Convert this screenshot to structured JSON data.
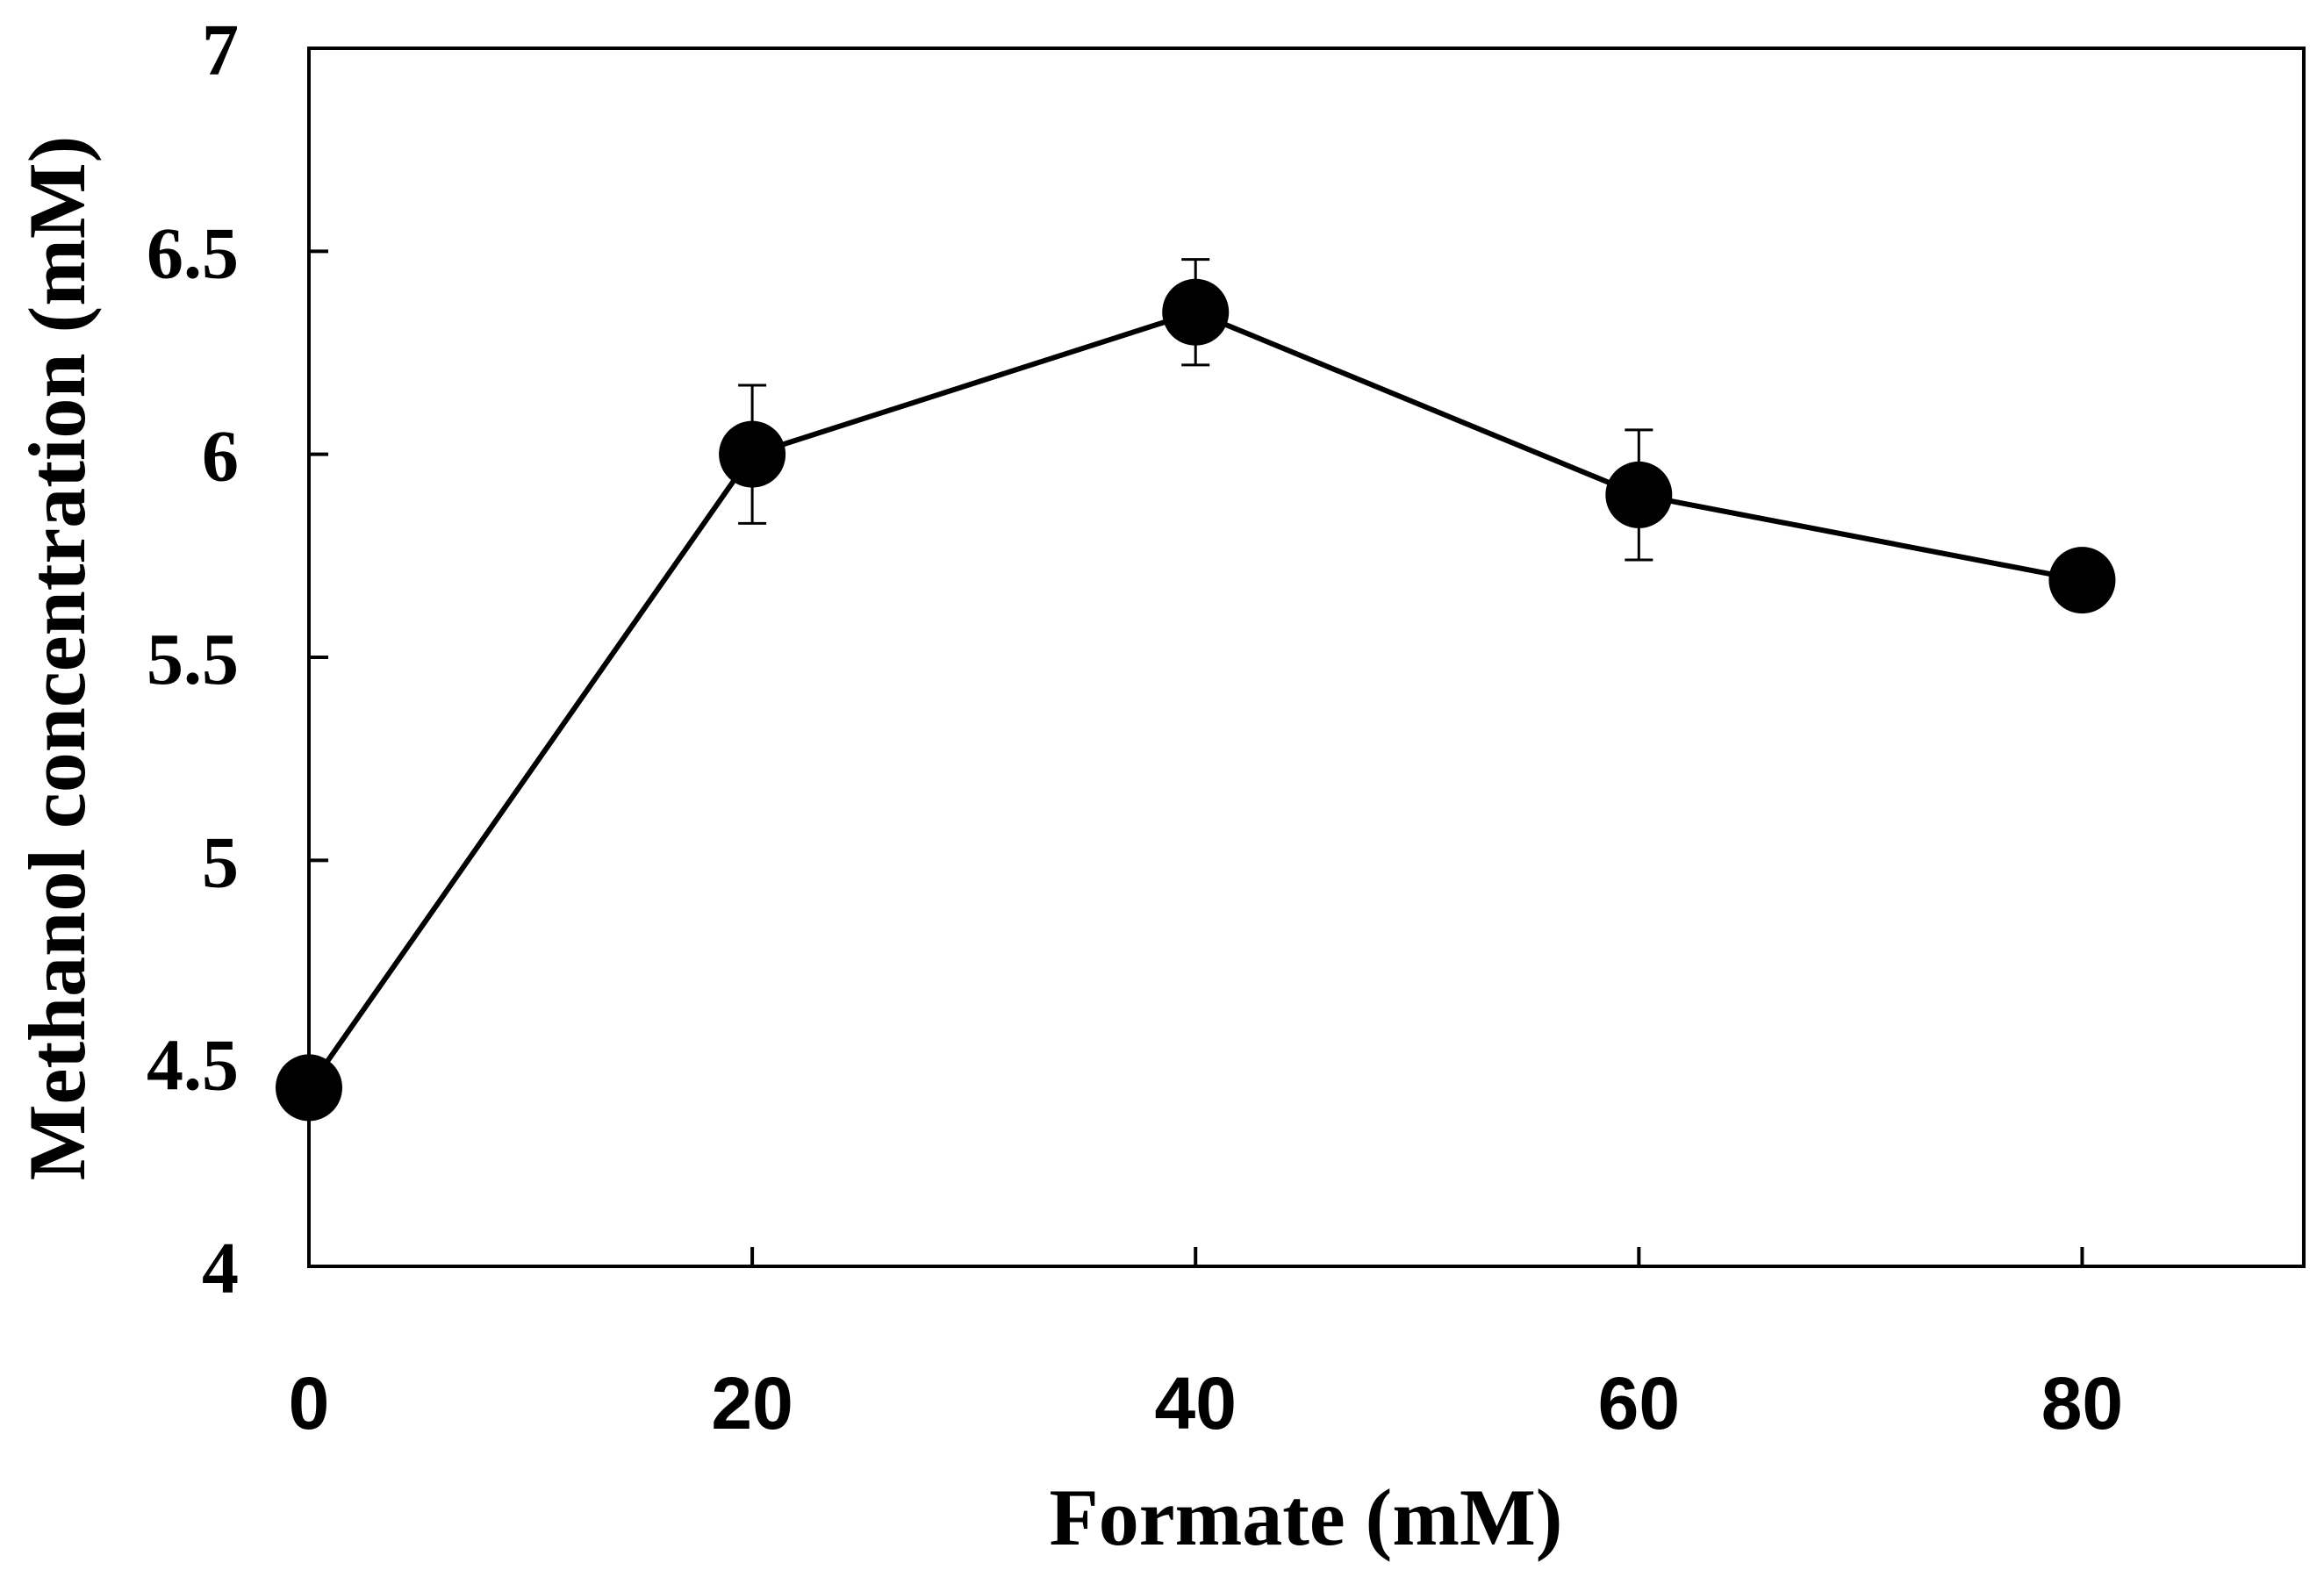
{
  "chart_data": {
    "type": "line",
    "title": "",
    "xlabel": "Formate (mM)",
    "ylabel": "Methanol  concentration (mM)",
    "xlim": [
      0,
      90
    ],
    "ylim": [
      4,
      7
    ],
    "x_ticks": [
      0,
      20,
      40,
      60,
      80
    ],
    "x_tick_labels": [
      "0",
      "20",
      "40",
      "60",
      "80"
    ],
    "y_ticks": [
      4,
      4.5,
      5,
      5.5,
      6,
      6.5,
      7
    ],
    "y_tick_labels": [
      "4",
      "4.5",
      "5",
      "5.5",
      "6",
      "6.5",
      "7"
    ],
    "grid": false,
    "series": [
      {
        "name": "Methanol concentration",
        "x": [
          0,
          20,
          40,
          60,
          80
        ],
        "y": [
          4.44,
          6.0,
          6.35,
          5.9,
          5.69
        ],
        "error": [
          0.0,
          0.17,
          0.13,
          0.16,
          0.0
        ],
        "color": "#000000",
        "marker": "filled-circle"
      }
    ]
  }
}
